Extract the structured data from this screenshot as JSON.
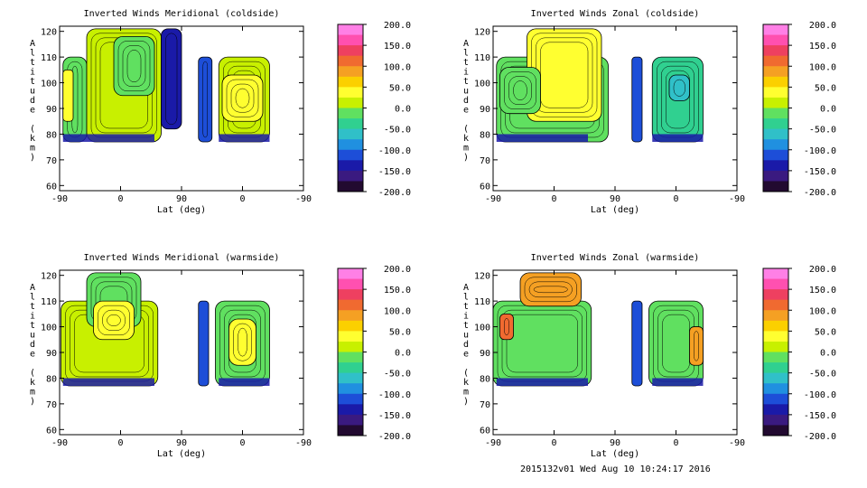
{
  "footer_text": "2015132v01 Wed Aug 10 10:24:17 2016",
  "colorbar": {
    "tick_labels": [
      "200.0",
      "150.0",
      "100.0",
      "50.0",
      "0.0",
      "-50.0",
      "-100.0",
      "-150.0",
      "-200.0"
    ],
    "colors_top_to_bottom": [
      "#ff80e6",
      "#ff50b0",
      "#ee4060",
      "#f06a30",
      "#f5a023",
      "#fbd000",
      "#ffff30",
      "#c8f000",
      "#60e060",
      "#30d090",
      "#30c0c8",
      "#2090e0",
      "#1d4ed8",
      "#1a1aa8",
      "#3a1a80",
      "#220a30"
    ]
  },
  "chart_data": [
    {
      "type": "heatmap",
      "title": "Inverted Winds Meridional (coldside)",
      "xlabel": "Lat (deg)",
      "ylabel": "Altitude (km)",
      "x_tick_labels": [
        "-90",
        "0",
        "90",
        "0",
        "-90"
      ],
      "y_tick_labels": [
        "120",
        "110",
        "100",
        "90",
        "80",
        "70",
        "60"
      ],
      "ylim": [
        58,
        122
      ],
      "colorbar_range": [
        -200,
        200
      ],
      "grid": false,
      "blobs": [
        {
          "lat_range": [
            -85,
            -50
          ],
          "alt_range": [
            77,
            110
          ],
          "fill": "#60e060"
        },
        {
          "lat_range": [
            -50,
            60
          ],
          "alt_range": [
            77,
            121
          ],
          "fill": "#c8f000"
        },
        {
          "lat_range": [
            -85,
            -70
          ],
          "alt_range": [
            85,
            105
          ],
          "fill": "#ffff30"
        },
        {
          "lat_range": [
            -10,
            50
          ],
          "alt_range": [
            95,
            118
          ],
          "fill": "#60e060"
        },
        {
          "lat_range": [
            60,
            90
          ],
          "alt_range": [
            82,
            121
          ],
          "fill": "#1a1aa8"
        },
        {
          "lat_range": [
            115,
            135
          ],
          "alt_range": [
            77,
            110
          ],
          "fill": "#1d4ed8"
        },
        {
          "lat_range": [
            145,
            220
          ],
          "alt_range": [
            77,
            110
          ],
          "fill": "#c8f000"
        },
        {
          "lat_range": [
            150,
            210
          ],
          "alt_range": [
            85,
            103
          ],
          "fill": "#ffff30"
        }
      ]
    },
    {
      "type": "heatmap",
      "title": "Inverted Winds Zonal (coldside)",
      "xlabel": "Lat (deg)",
      "ylabel": "Altitude (km)",
      "x_tick_labels": [
        "-90",
        "0",
        "90",
        "0",
        "-90"
      ],
      "y_tick_labels": [
        "120",
        "110",
        "100",
        "90",
        "80",
        "70",
        "60"
      ],
      "ylim": [
        58,
        122
      ],
      "colorbar_range": [
        -200,
        200
      ],
      "grid": false,
      "blobs": [
        {
          "lat_range": [
            -85,
            80
          ],
          "alt_range": [
            77,
            110
          ],
          "fill": "#60e060"
        },
        {
          "lat_range": [
            -40,
            70
          ],
          "alt_range": [
            85,
            121
          ],
          "fill": "#ffff30"
        },
        {
          "lat_range": [
            -80,
            -20
          ],
          "alt_range": [
            88,
            106
          ],
          "fill": "#60e060"
        },
        {
          "lat_range": [
            115,
            130
          ],
          "alt_range": [
            77,
            110
          ],
          "fill": "#1d4ed8"
        },
        {
          "lat_range": [
            145,
            220
          ],
          "alt_range": [
            77,
            110
          ],
          "fill": "#30d090"
        },
        {
          "lat_range": [
            170,
            200
          ],
          "alt_range": [
            93,
            103
          ],
          "fill": "#30c0c8"
        }
      ]
    },
    {
      "type": "heatmap",
      "title": "Inverted Winds Meridional (warmside)",
      "xlabel": "Lat (deg)",
      "ylabel": "Altitude (km)",
      "x_tick_labels": [
        "-90",
        "0",
        "90",
        "0",
        "-90"
      ],
      "y_tick_labels": [
        "120",
        "110",
        "100",
        "90",
        "80",
        "70",
        "60"
      ],
      "ylim": [
        58,
        122
      ],
      "colorbar_range": [
        -200,
        200
      ],
      "grid": false,
      "blobs": [
        {
          "lat_range": [
            -88,
            55
          ],
          "alt_range": [
            77,
            110
          ],
          "fill": "#c8f000"
        },
        {
          "lat_range": [
            -50,
            30
          ],
          "alt_range": [
            100,
            121
          ],
          "fill": "#60e060"
        },
        {
          "lat_range": [
            -40,
            20
          ],
          "alt_range": [
            95,
            110
          ],
          "fill": "#ffff30"
        },
        {
          "lat_range": [
            115,
            130
          ],
          "alt_range": [
            77,
            110
          ],
          "fill": "#1d4ed8"
        },
        {
          "lat_range": [
            140,
            220
          ],
          "alt_range": [
            77,
            110
          ],
          "fill": "#60e060"
        },
        {
          "lat_range": [
            160,
            200
          ],
          "alt_range": [
            85,
            103
          ],
          "fill": "#ffff30"
        }
      ]
    },
    {
      "type": "heatmap",
      "title": "Inverted Winds Zonal (warmside)",
      "xlabel": "Lat (deg)",
      "ylabel": "Altitude (km)",
      "x_tick_labels": [
        "-90",
        "0",
        "90",
        "0",
        "-90"
      ],
      "y_tick_labels": [
        "120",
        "110",
        "100",
        "90",
        "80",
        "70",
        "60"
      ],
      "ylim": [
        58,
        122
      ],
      "colorbar_range": [
        -200,
        200
      ],
      "grid": false,
      "blobs": [
        {
          "lat_range": [
            -90,
            55
          ],
          "alt_range": [
            77,
            110
          ],
          "fill": "#60e060"
        },
        {
          "lat_range": [
            -50,
            40
          ],
          "alt_range": [
            108,
            121
          ],
          "fill": "#f5a023"
        },
        {
          "lat_range": [
            -80,
            -60
          ],
          "alt_range": [
            95,
            105
          ],
          "fill": "#f06a30"
        },
        {
          "lat_range": [
            115,
            130
          ],
          "alt_range": [
            77,
            110
          ],
          "fill": "#1d4ed8"
        },
        {
          "lat_range": [
            140,
            220
          ],
          "alt_range": [
            77,
            110
          ],
          "fill": "#60e060"
        },
        {
          "lat_range": [
            200,
            220
          ],
          "alt_range": [
            85,
            100
          ],
          "fill": "#f5a023"
        }
      ]
    }
  ]
}
